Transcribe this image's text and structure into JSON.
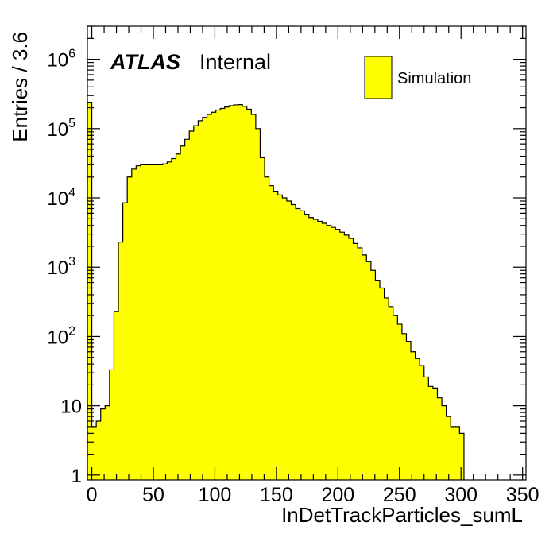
{
  "chart_data": {
    "type": "bar",
    "histogram": true,
    "xlabel": "InDetTrackParticles_sumL",
    "ylabel": "Entries / 3.6",
    "log_y": true,
    "xlim": [
      -3.6,
      352.8
    ],
    "ylim": [
      0.85,
      3000000
    ],
    "bin_width": 3.6,
    "bin_start": -3.6,
    "x_ticks": [
      0,
      50,
      100,
      150,
      200,
      250,
      300,
      350
    ],
    "y_ticks": [
      {
        "value": 1,
        "base": "1",
        "exp": ""
      },
      {
        "value": 10,
        "base": "10",
        "exp": ""
      },
      {
        "value": 100,
        "base": "10",
        "exp": "2"
      },
      {
        "value": 1000,
        "base": "10",
        "exp": "3"
      },
      {
        "value": 10000,
        "base": "10",
        "exp": "4"
      },
      {
        "value": 100000,
        "base": "10",
        "exp": "5"
      },
      {
        "value": 1000000,
        "base": "10",
        "exp": "6"
      }
    ],
    "fill_color": "#ffff00",
    "line_color": "#000000",
    "values": [
      240000,
      5,
      6,
      9,
      10,
      33,
      230,
      2300,
      8500,
      20000,
      26000,
      29000,
      30000,
      30000,
      30000,
      30000,
      30000,
      31000,
      33000,
      37000,
      43000,
      56000,
      70000,
      92000,
      110000,
      130000,
      145000,
      160000,
      172000,
      185000,
      195000,
      205000,
      214000,
      220000,
      222000,
      210000,
      190000,
      160000,
      100000,
      38000,
      20000,
      15000,
      12500,
      11000,
      10000,
      9000,
      8000,
      7000,
      6500,
      5800,
      5200,
      4900,
      4600,
      4300,
      4000,
      3750,
      3500,
      3200,
      2900,
      2600,
      2200,
      1900,
      1500,
      1200,
      900,
      650,
      500,
      360,
      270,
      200,
      150,
      110,
      85,
      60,
      48,
      38,
      26,
      19,
      18,
      13,
      10,
      7,
      5,
      5,
      4
    ]
  },
  "texts": {
    "atlas": "ATLAS",
    "internal": "Internal",
    "legend_label": "Simulation"
  }
}
